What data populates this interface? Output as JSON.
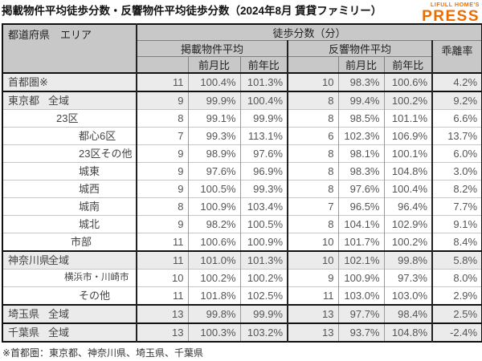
{
  "title": "掲載物件平均徒歩分数・反響物件平均徒歩分数（2024年8月 賃貸ファミリー）",
  "logo": {
    "top": "LIFULL HOME'S",
    "main": "PRESS",
    "color": "#ed6c00"
  },
  "footnote": "※首都圏：東京都、神奈川県、埼玉県、千葉県",
  "chart_data": {
    "type": "table",
    "title": "掲載物件平均徒歩分数・反響物件平均徒歩分数（2024年8月 賃貸ファミリー）",
    "header": {
      "region": "都道府県　エリア",
      "group": "徒歩分数（分）",
      "listed_avg": "掲載物件平均",
      "response_avg": "反響物件平均",
      "mom": "前月比",
      "yoy": "前年比",
      "divergence": "乖離率"
    },
    "columns": [
      "都道府県 エリア",
      "掲載物件平均",
      "掲載 前月比",
      "掲載 前年比",
      "反響物件平均",
      "反響 前月比",
      "反響 前年比",
      "乖離率"
    ],
    "rows": [
      {
        "pref": "首都圏※",
        "area": "",
        "depth": 0,
        "summary": true,
        "group_start": false,
        "values": [
          "11",
          "100.4%",
          "101.3%",
          "10",
          "98.3%",
          "100.6%",
          "4.2%"
        ]
      },
      {
        "pref": "東京都",
        "area": "全域",
        "depth": 1,
        "summary": true,
        "group_start": true,
        "values": [
          "9",
          "99.9%",
          "100.4%",
          "8",
          "99.4%",
          "100.2%",
          "9.2%"
        ]
      },
      {
        "pref": "",
        "area": "23区",
        "depth": 2,
        "summary": false,
        "group_start": false,
        "values": [
          "8",
          "99.1%",
          "99.9%",
          "8",
          "98.5%",
          "101.1%",
          "6.6%"
        ]
      },
      {
        "pref": "",
        "area": "都心6区",
        "depth": 4,
        "summary": false,
        "group_start": false,
        "values": [
          "7",
          "99.3%",
          "113.1%",
          "6",
          "102.3%",
          "106.9%",
          "13.7%"
        ]
      },
      {
        "pref": "",
        "area": "23区その他",
        "depth": 4,
        "summary": false,
        "group_start": false,
        "values": [
          "9",
          "98.9%",
          "97.6%",
          "8",
          "98.1%",
          "100.1%",
          "6.0%"
        ]
      },
      {
        "pref": "",
        "area": "城東",
        "depth": 4,
        "summary": false,
        "group_start": false,
        "values": [
          "9",
          "97.6%",
          "96.9%",
          "8",
          "98.3%",
          "104.8%",
          "3.0%"
        ]
      },
      {
        "pref": "",
        "area": "城西",
        "depth": 4,
        "summary": false,
        "group_start": false,
        "values": [
          "9",
          "100.5%",
          "99.3%",
          "8",
          "97.6%",
          "100.4%",
          "8.2%"
        ]
      },
      {
        "pref": "",
        "area": "城南",
        "depth": 4,
        "summary": false,
        "group_start": false,
        "values": [
          "8",
          "100.9%",
          "103.4%",
          "7",
          "96.5%",
          "96.4%",
          "7.7%"
        ]
      },
      {
        "pref": "",
        "area": "城北",
        "depth": 4,
        "summary": false,
        "group_start": false,
        "values": [
          "9",
          "98.2%",
          "100.5%",
          "8",
          "104.1%",
          "102.9%",
          "9.1%"
        ]
      },
      {
        "pref": "",
        "area": "市部",
        "depth": 3,
        "summary": false,
        "group_start": false,
        "values": [
          "11",
          "100.6%",
          "100.9%",
          "10",
          "101.7%",
          "100.2%",
          "8.4%"
        ]
      },
      {
        "pref": "神奈川県",
        "area": "全域",
        "depth": 1,
        "summary": true,
        "group_start": true,
        "values": [
          "11",
          "101.0%",
          "101.3%",
          "10",
          "102.1%",
          "99.8%",
          "5.8%"
        ]
      },
      {
        "pref": "",
        "area": "横浜市・川崎市",
        "depth": 5,
        "summary": false,
        "group_start": false,
        "values": [
          "10",
          "100.2%",
          "100.2%",
          "9",
          "100.9%",
          "97.3%",
          "8.0%"
        ]
      },
      {
        "pref": "",
        "area": "その他",
        "depth": 4,
        "summary": false,
        "group_start": false,
        "values": [
          "11",
          "101.8%",
          "102.5%",
          "11",
          "103.0%",
          "103.0%",
          "2.9%"
        ]
      },
      {
        "pref": "埼玉県",
        "area": "全域",
        "depth": 1,
        "summary": true,
        "group_start": true,
        "values": [
          "13",
          "99.8%",
          "99.9%",
          "13",
          "97.7%",
          "98.4%",
          "2.5%"
        ]
      },
      {
        "pref": "千葉県",
        "area": "全域",
        "depth": 1,
        "summary": true,
        "group_start": true,
        "values": [
          "13",
          "100.3%",
          "103.2%",
          "13",
          "93.7%",
          "104.8%",
          "-2.4%"
        ]
      }
    ]
  }
}
